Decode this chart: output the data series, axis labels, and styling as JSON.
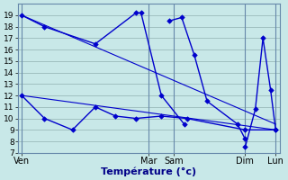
{
  "background_color": "#c8e8e8",
  "grid_color": "#a0c0c0",
  "line_color": "#0000cc",
  "xlabel": "Température (°c)",
  "ylim": [
    7,
    20
  ],
  "xlim": [
    -0.15,
    10.15
  ],
  "yticks": [
    7,
    8,
    9,
    10,
    11,
    12,
    13,
    14,
    15,
    16,
    17,
    18,
    19
  ],
  "xtick_positions": [
    0,
    5.0,
    6.0,
    8.8,
    10.0
  ],
  "xtick_labels": [
    "Ven",
    "Mar",
    "Sam",
    "Dim",
    "Lun"
  ],
  "vline_positions": [
    0,
    5.0,
    6.0,
    8.8,
    10.0
  ],
  "series1_x": [
    0,
    0.9,
    2.9,
    4.5,
    4.7,
    5.5,
    6.4
  ],
  "series1_y": [
    19,
    18,
    16.5,
    19.2,
    19.2,
    12.0,
    9.5
  ],
  "series2_x": [
    5.8,
    6.3,
    6.8,
    7.3,
    8.5,
    8.8
  ],
  "series2_y": [
    18.5,
    18.8,
    15.5,
    11.5,
    9.5,
    8.2
  ],
  "series3_x": [
    8.8,
    9.2,
    9.5,
    9.8,
    10.0
  ],
  "series3_y": [
    7.5,
    10.8,
    17.0,
    12.5,
    9.0
  ],
  "series4_x": [
    0,
    0.9,
    2.0,
    2.9,
    3.7,
    4.5,
    5.5,
    6.5,
    8.8,
    10.0
  ],
  "series4_y": [
    12,
    10,
    9,
    11,
    10.2,
    10,
    10.2,
    10,
    9.0,
    9.0
  ],
  "trend1_x": [
    0,
    10.0
  ],
  "trend1_y": [
    12.0,
    9.0
  ],
  "trend2_x": [
    0,
    10.0
  ],
  "trend2_y": [
    19.0,
    9.5
  ]
}
